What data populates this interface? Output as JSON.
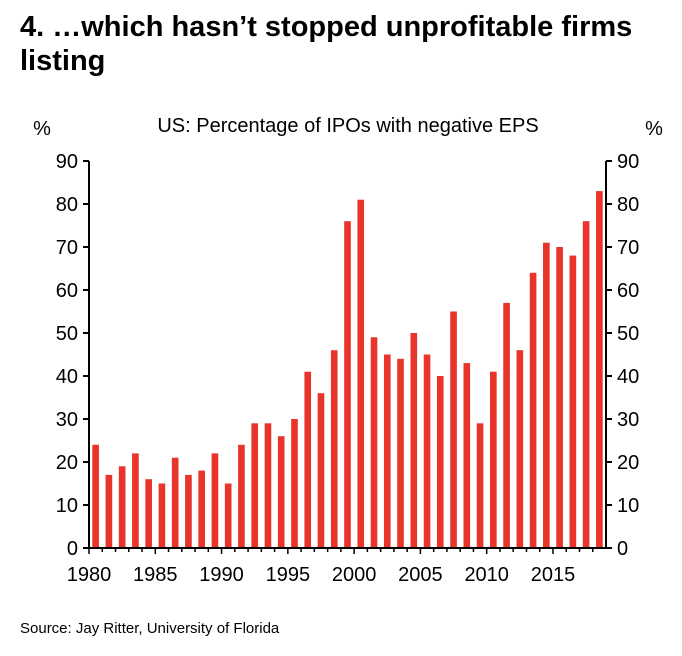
{
  "headline": "4. …which hasn’t stopped unprofitable firms listing",
  "source": "Source: Jay Ritter, University of Florida",
  "chart_data": {
    "type": "bar",
    "title": "US: Percentage of IPOs with negative EPS",
    "ylabel_left": "%",
    "ylabel_right": "%",
    "ylim": [
      0,
      90
    ],
    "yticks": [
      0,
      10,
      20,
      30,
      40,
      50,
      60,
      70,
      80,
      90
    ],
    "x_tick_labels": [
      "1980",
      "1985",
      "1990",
      "1995",
      "2000",
      "2005",
      "2010",
      "2015"
    ],
    "grid": false,
    "bar_color": "#e8342a",
    "x": [
      1980,
      1981,
      1982,
      1983,
      1984,
      1985,
      1986,
      1987,
      1988,
      1989,
      1990,
      1991,
      1992,
      1993,
      1994,
      1995,
      1996,
      1997,
      1998,
      1999,
      2000,
      2001,
      2002,
      2003,
      2004,
      2005,
      2006,
      2007,
      2008,
      2009,
      2010,
      2011,
      2012,
      2013,
      2014,
      2015,
      2016,
      2017,
      2018
    ],
    "values": [
      24,
      17,
      19,
      22,
      16,
      15,
      21,
      17,
      18,
      22,
      15,
      24,
      29,
      29,
      26,
      30,
      41,
      36,
      46,
      76,
      81,
      49,
      45,
      44,
      50,
      45,
      40,
      55,
      43,
      29,
      41,
      57,
      46,
      64,
      71,
      70,
      68,
      76,
      83
    ]
  }
}
